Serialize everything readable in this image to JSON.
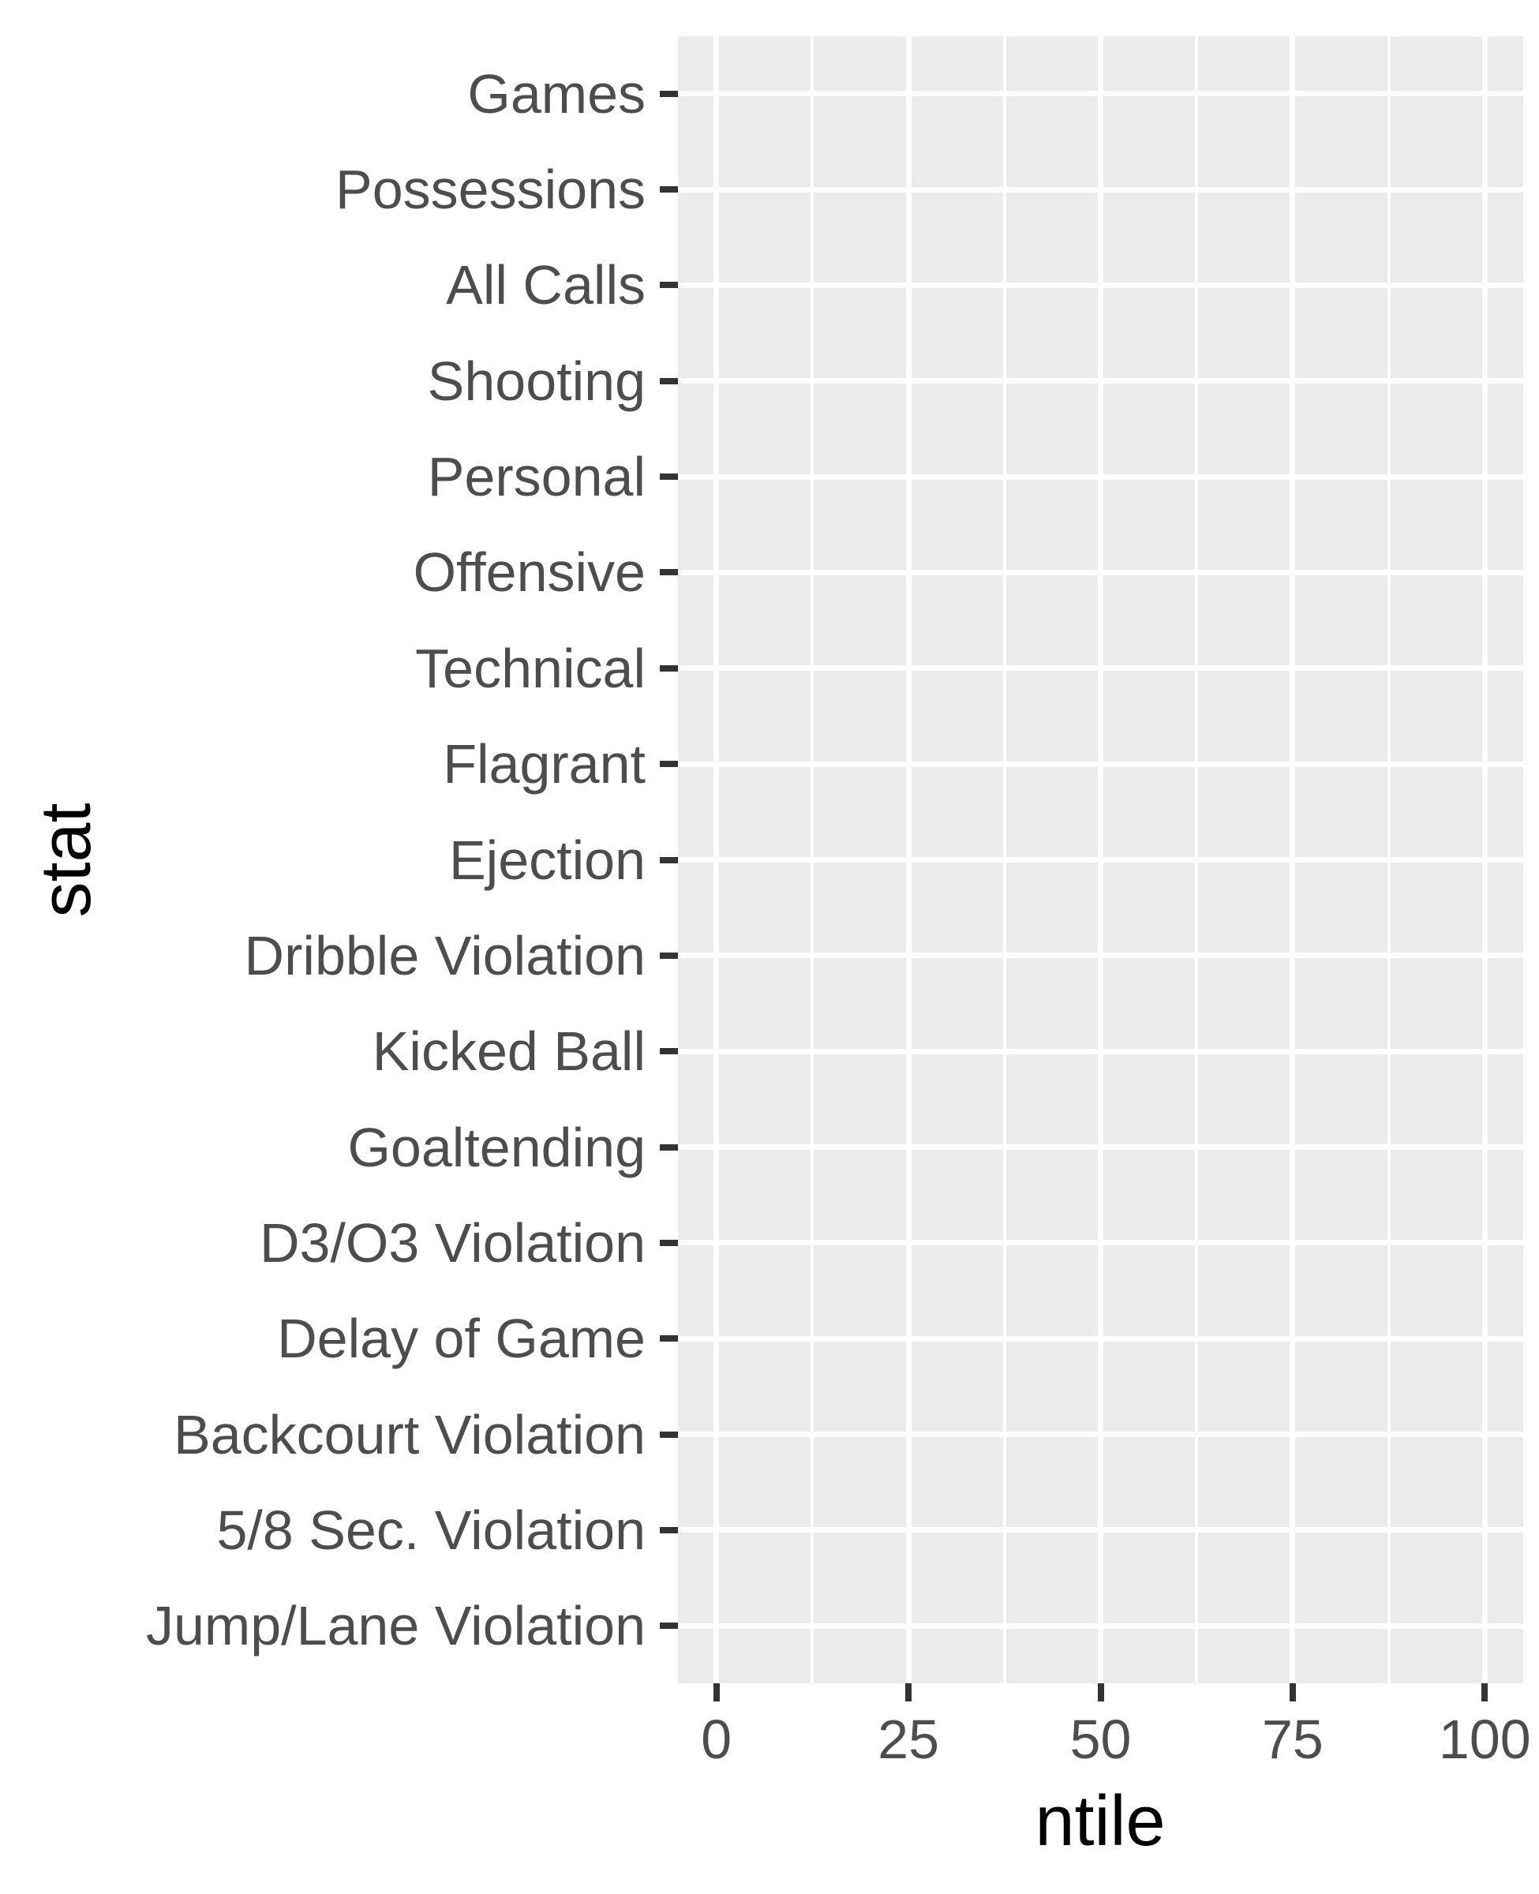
{
  "chart_data": {
    "type": "scatter",
    "title": "",
    "xlabel": "ntile",
    "ylabel": "stat",
    "categories": [
      "Games",
      "Possessions",
      "All Calls",
      "Shooting",
      "Personal",
      "Offensive",
      "Technical",
      "Flagrant",
      "Ejection",
      "Dribble Violation",
      "Kicked Ball",
      "Goaltending",
      "D3/O3 Violation",
      "Delay of Game",
      "Backcourt Violation",
      "5/8 Sec. Violation",
      "Jump/Lane Violation"
    ],
    "x_major_ticks": [
      0,
      25,
      50,
      75,
      100
    ],
    "x_tick_labels": [
      "0",
      "25",
      "50",
      "75",
      "100"
    ],
    "x_minor_ticks": [
      12.5,
      37.5,
      62.5,
      87.5
    ],
    "xlim": [
      0,
      100
    ],
    "series": [],
    "grid": "white major gridlines at each category row and each x major tick; white minor gridlines between x ticks; grey panel",
    "legend_position": "none"
  },
  "style": {
    "page_bg": "#FFFFFF",
    "panel_bg": "#EBEBEB",
    "grid_color": "#FFFFFF",
    "tick_mark_color": "#333333",
    "axis_text_color": "#4D4D4D",
    "axis_title_color": "#000000"
  }
}
